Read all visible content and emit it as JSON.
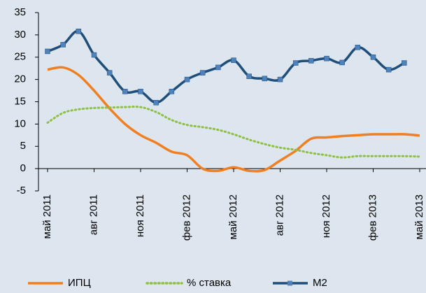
{
  "chart_data": {
    "type": "line",
    "categories": [
      "май 2011",
      null,
      null,
      "авг 2011",
      null,
      null,
      "ноя 2011",
      null,
      null,
      "фев 2012",
      null,
      null,
      "май 2012",
      null,
      null,
      "авг 2012",
      null,
      null,
      "ноя 2012",
      null,
      null,
      "фев 2013",
      null,
      null,
      "май 2013"
    ],
    "series": [
      {
        "name": "ИПЦ",
        "color": "#f07f22",
        "style": "solid",
        "values": [
          22.2,
          22.7,
          21,
          17.5,
          13.5,
          10,
          7.5,
          5.8,
          3.8,
          3,
          0,
          -0.5,
          0.3,
          -0.5,
          -0.3,
          1.8,
          4,
          6.7,
          7,
          7.3,
          7.5,
          7.7,
          7.7,
          7.7,
          7.4
        ]
      },
      {
        "name": "% ставка",
        "color": "#8fbf45",
        "style": "dotted",
        "values": [
          10.3,
          12.5,
          13.3,
          13.6,
          13.7,
          13.8,
          13.8,
          12.7,
          10.9,
          9.8,
          9.3,
          8.7,
          7.7,
          6.5,
          5.5,
          4.7,
          4.2,
          3.5,
          3.0,
          2.5,
          2.8,
          2.8,
          2.8,
          2.8,
          2.7
        ]
      },
      {
        "name": "M2",
        "color": "#1f4e79",
        "marker_color": "#4f81bd",
        "style": "marker",
        "values": [
          26.3,
          27.8,
          30.8,
          25.5,
          21.5,
          17.3,
          17.3,
          14.8,
          17.3,
          20,
          21.5,
          22.7,
          24.3,
          20.7,
          20.2,
          20,
          23.7,
          24.2,
          24.7,
          23.8,
          27.2,
          25,
          22.2,
          23.7,
          null
        ]
      }
    ],
    "ylim": [
      -5,
      35
    ],
    "yticks": [
      -5,
      0,
      5,
      10,
      15,
      20,
      25,
      30,
      35
    ],
    "grid": false,
    "legend": "bottom"
  }
}
